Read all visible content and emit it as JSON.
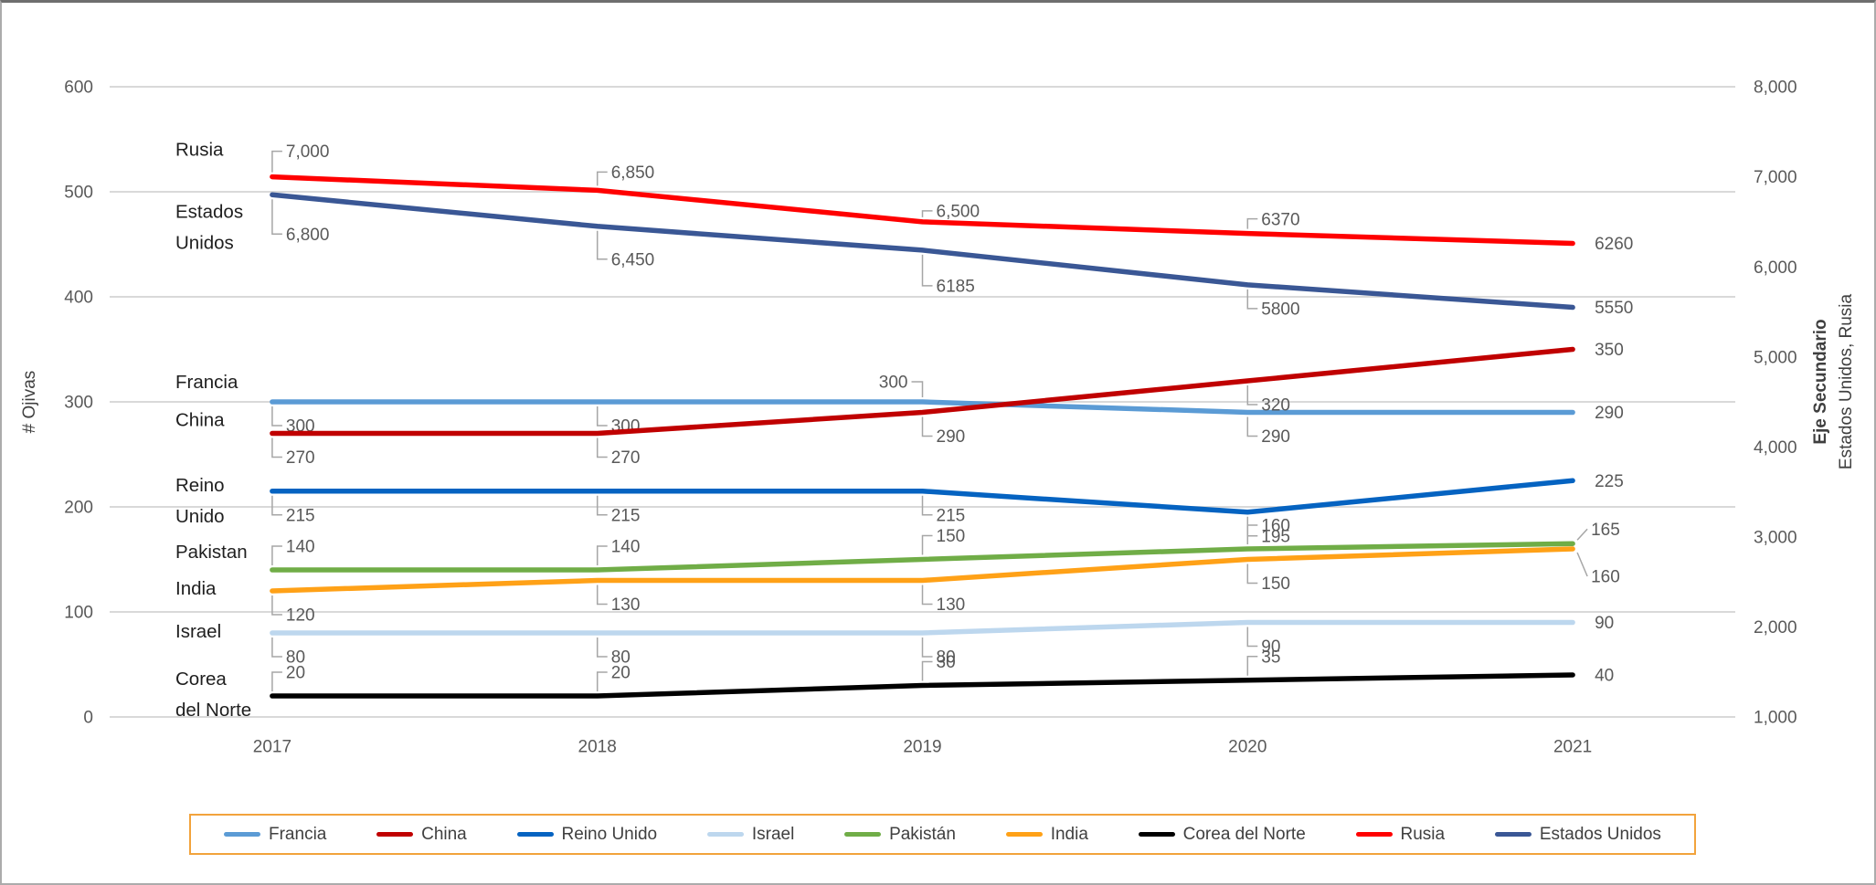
{
  "window": {
    "background": "#FFFFFF",
    "frame_border_color": "#ABABAB",
    "frame_top_border_color": "#6E6E6E"
  },
  "colors": {
    "gridline": "#D9D9D9",
    "tick_text": "#595959",
    "data_label_text": "#595959",
    "series_name_text": "#1F1F1F",
    "connector": "#A6A6A6",
    "legend_border": "#F2A33C",
    "legend_text": "#404040"
  },
  "chart_data": {
    "type": "line",
    "title": "",
    "categories": [
      "2017",
      "2018",
      "2019",
      "2020",
      "2021"
    ],
    "grid": true,
    "legend_position": "bottom",
    "axes": {
      "left": {
        "title": "# Ojivas",
        "min": 0,
        "max": 600,
        "tick_step": 100,
        "tick_labels": [
          "0",
          "100",
          "200",
          "300",
          "400",
          "500",
          "600"
        ]
      },
      "right": {
        "title_bold": "Eje Secundario",
        "title_sub": "Estados Unidos, Rusia",
        "min": 1000,
        "max": 8000,
        "tick_step": 1000,
        "tick_labels": [
          "1,000",
          "2,000",
          "3,000",
          "4,000",
          "5,000",
          "6,000",
          "7,000",
          "8,000"
        ]
      }
    },
    "series": [
      {
        "name": "Francia",
        "color": "#5B9BD5",
        "axis": "left",
        "values": [
          300,
          300,
          300,
          290,
          290
        ],
        "point_labels": [
          "300",
          "300",
          "300",
          "290",
          "290"
        ],
        "label_modes": [
          "b",
          "b",
          "al",
          "b",
          "r"
        ],
        "side_label": {
          "lines": [
            "Francia"
          ],
          "dy": -22
        }
      },
      {
        "name": "China",
        "color": "#C00000",
        "axis": "left",
        "values": [
          270,
          270,
          290,
          320,
          350
        ],
        "point_labels": [
          "270",
          "270",
          "290",
          "320",
          "350"
        ],
        "label_modes": [
          "b",
          "b",
          "b",
          "b",
          "r"
        ],
        "side_label": {
          "lines": [
            "China"
          ],
          "dy": -15
        }
      },
      {
        "name": "Reino Unido",
        "color": "#0563C1",
        "axis": "left",
        "values": [
          215,
          215,
          215,
          195,
          225
        ],
        "point_labels": [
          "215",
          "215",
          "215",
          "195",
          "225"
        ],
        "label_modes": [
          "b",
          "b",
          "b",
          "b",
          "r"
        ],
        "side_label": {
          "lines": [
            "Reino",
            "Unido"
          ],
          "dy": 10
        }
      },
      {
        "name": "Israel",
        "color": "#BDD7EE",
        "axis": "left",
        "values": [
          80,
          80,
          80,
          90,
          90
        ],
        "point_labels": [
          "80",
          "80",
          "80",
          "90",
          "90"
        ],
        "label_modes": [
          "b",
          "b",
          "b",
          "b",
          "r"
        ],
        "side_label": {
          "lines": [
            "Israel"
          ],
          "dy": -2
        }
      },
      {
        "name": "Pakistán",
        "color": "#70AD47",
        "axis": "left",
        "values": [
          140,
          140,
          150,
          160,
          165
        ],
        "point_labels": [
          "140",
          "140",
          "150",
          "160",
          "165"
        ],
        "label_modes": [
          "a",
          "a",
          "a",
          "a",
          "ar-16"
        ],
        "side_label": {
          "lines": [
            "Pakistan"
          ],
          "dy": -20
        }
      },
      {
        "name": "India",
        "color": "#FFA117",
        "axis": "left",
        "values": [
          120,
          130,
          130,
          150,
          160
        ],
        "point_labels": [
          "120",
          "130",
          "130",
          "150",
          "160"
        ],
        "label_modes": [
          "b",
          "b",
          "b",
          "b",
          "br+30"
        ],
        "side_label": {
          "lines": [
            "India"
          ],
          "dy": -3
        }
      },
      {
        "name": "Corea del Norte",
        "color": "#000000",
        "axis": "left",
        "values": [
          20,
          20,
          30,
          35,
          40
        ],
        "point_labels": [
          "20",
          "20",
          "30",
          "35",
          "40"
        ],
        "label_modes": [
          "a",
          "a",
          "a",
          "a",
          "r"
        ],
        "side_label": {
          "lines": [
            "Corea",
            "del Norte"
          ],
          "dy": -2
        }
      },
      {
        "name": "Rusia",
        "color": "#FF0000",
        "axis": "right",
        "values": [
          7000,
          6850,
          6500,
          6370,
          6260
        ],
        "point_labels": [
          "7,000",
          "6,850",
          "6,500",
          "6370",
          "6260"
        ],
        "label_modes": [
          "a-28",
          "a-20",
          "a-12",
          "a-16",
          "r"
        ],
        "side_label": {
          "lines": [
            "Rusia"
          ],
          "dy": -30
        }
      },
      {
        "name": "Estados Unidos",
        "color": "#3A5795",
        "axis": "right",
        "values": [
          6800,
          6450,
          6185,
          5800,
          5550
        ],
        "point_labels": [
          "6,800",
          "6,450",
          "6185",
          "5800",
          "5550"
        ],
        "label_modes": [
          "b+43",
          "b+36",
          "b+39",
          "b+26",
          "r"
        ],
        "side_label": {
          "lines": [
            "Estados",
            "Unidos"
          ],
          "dy": 35
        }
      }
    ]
  }
}
